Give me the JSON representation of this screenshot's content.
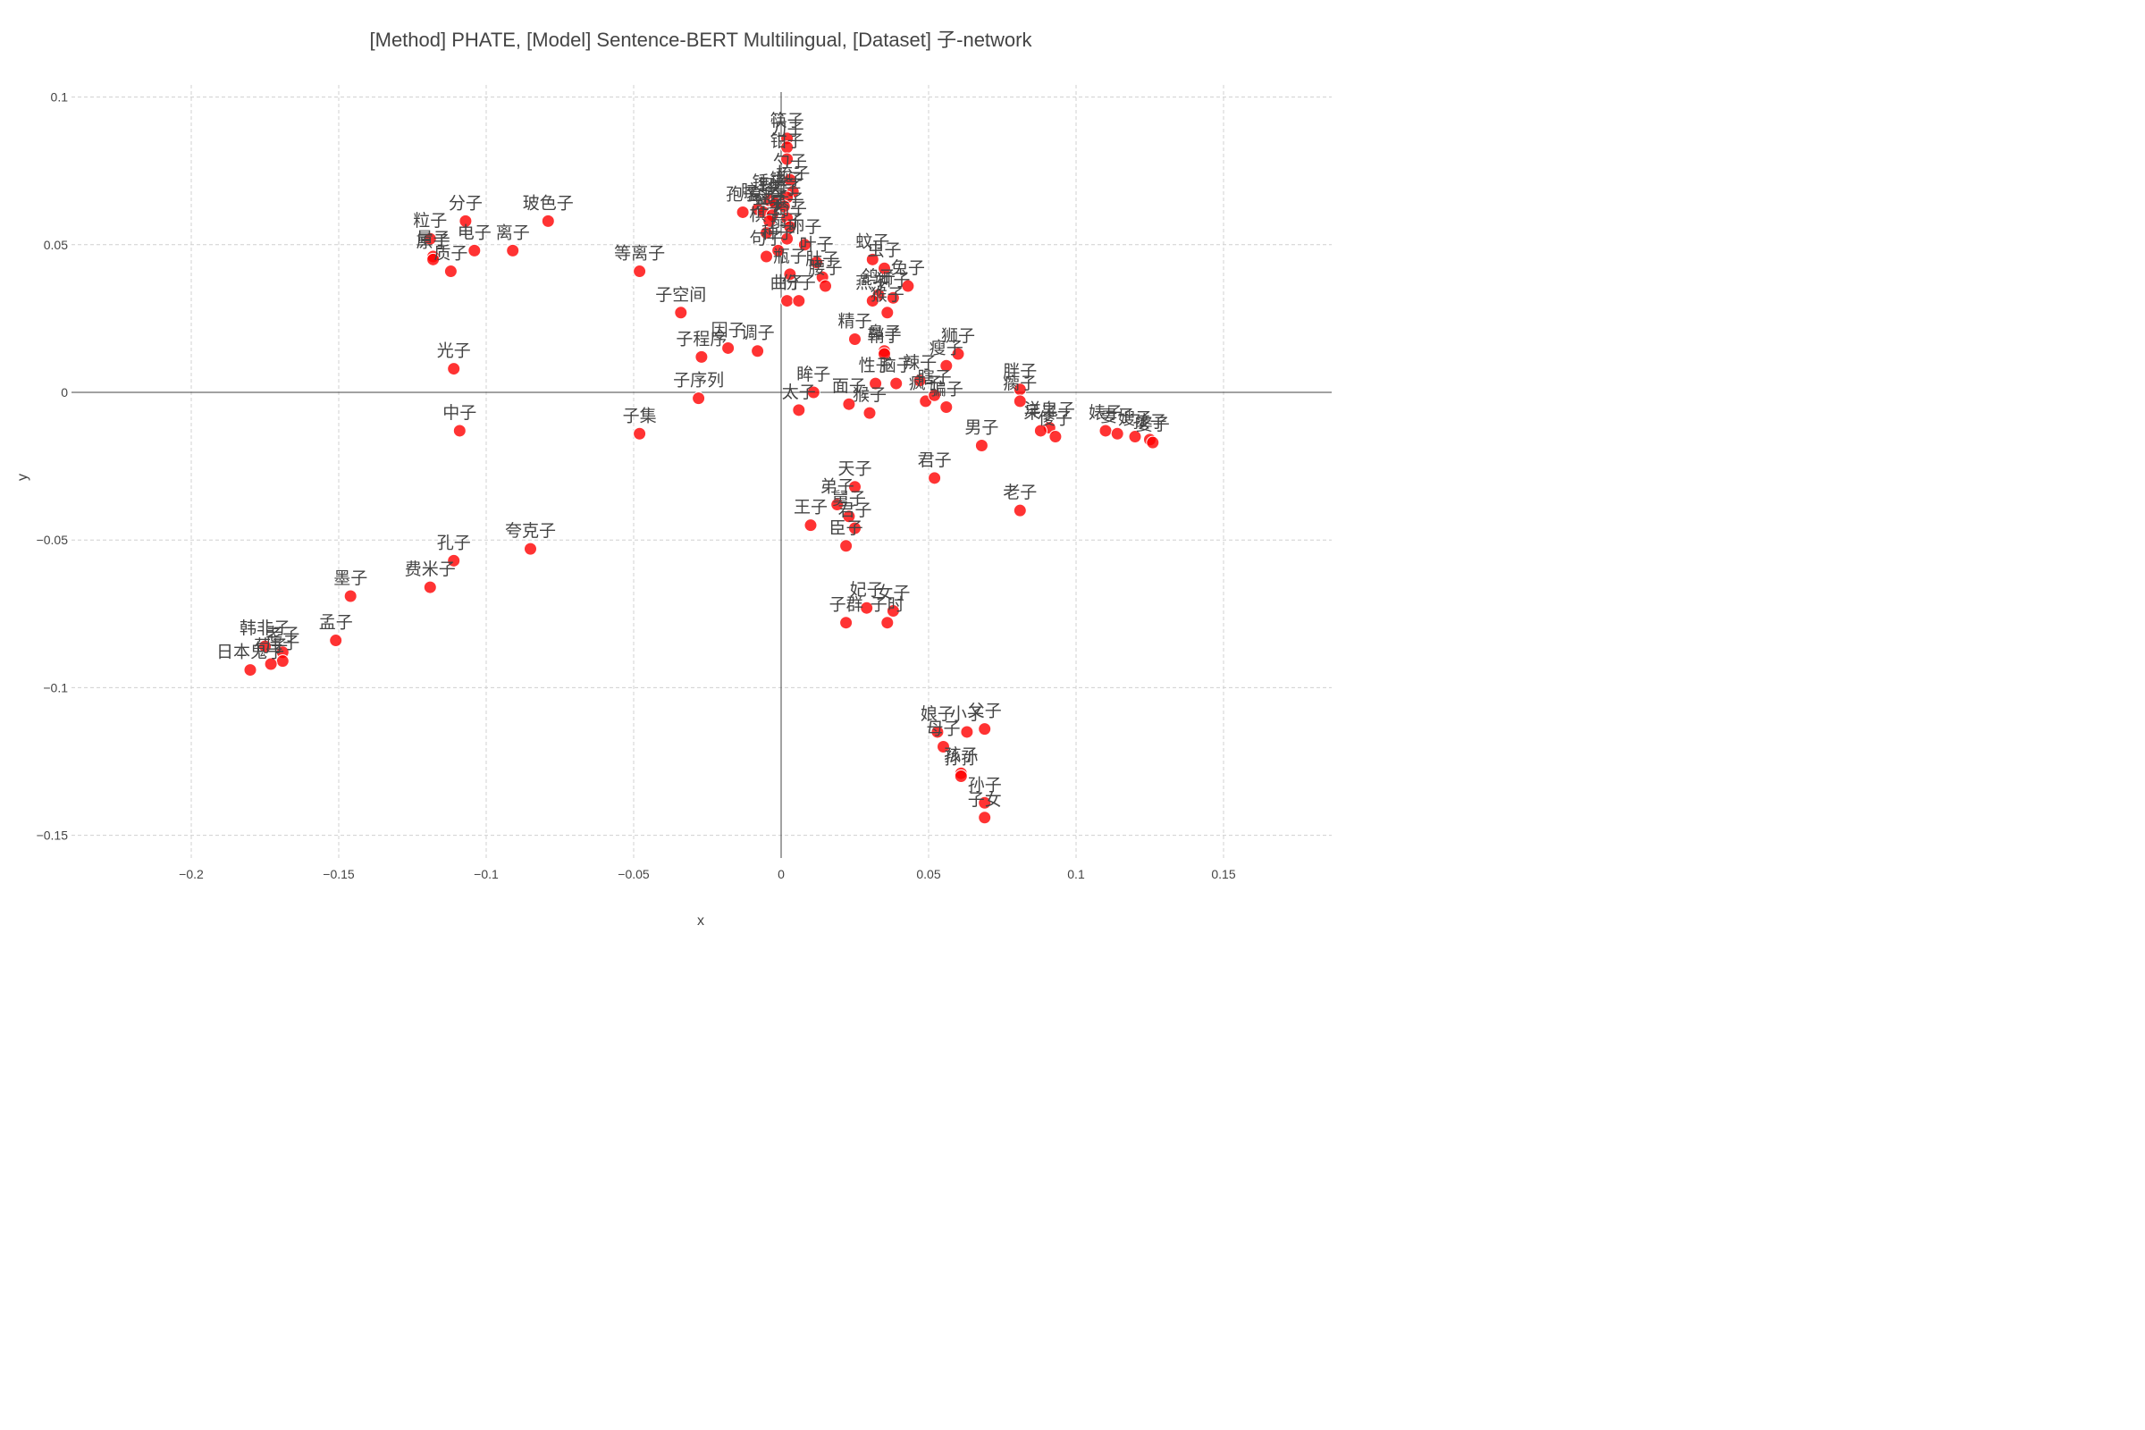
{
  "chart_data": {
    "type": "scatter",
    "title": "[Method] PHATE, [Model] Sentence-BERT Multilingual, [Dataset] 子-network",
    "xlabel": "x",
    "ylabel": "y",
    "xlim": [
      -0.2,
      0.15
    ],
    "ylim": [
      -0.15,
      0.1
    ],
    "xticks": [
      -0.2,
      -0.15,
      -0.1,
      -0.05,
      0,
      0.05,
      0.1,
      0.15
    ],
    "xtick_labels": [
      "−0.2",
      "−0.15",
      "−0.1",
      "−0.05",
      "0",
      "0.05",
      "0.1",
      "0.15"
    ],
    "yticks": [
      0.1,
      0.05,
      0,
      -0.05,
      -0.1,
      -0.15
    ],
    "ytick_labels": [
      "0.1",
      "0.05",
      "0",
      "−0.05",
      "−0.1",
      "−0.15"
    ],
    "grid": true,
    "legend": "none",
    "marker_color": "#ff0000",
    "points": [
      {
        "label": "分子",
        "x": -0.107,
        "y": 0.058
      },
      {
        "label": "玻色子",
        "x": -0.079,
        "y": 0.058
      },
      {
        "label": "粒子",
        "x": -0.119,
        "y": 0.052
      },
      {
        "label": "电子",
        "x": -0.104,
        "y": 0.048
      },
      {
        "label": "离子",
        "x": -0.091,
        "y": 0.048
      },
      {
        "label": "量子",
        "x": -0.118,
        "y": 0.046
      },
      {
        "label": "原子",
        "x": -0.118,
        "y": 0.045
      },
      {
        "label": "质子",
        "x": -0.112,
        "y": 0.041
      },
      {
        "label": "等离子",
        "x": -0.048,
        "y": 0.041
      },
      {
        "label": "子空间",
        "x": -0.034,
        "y": 0.027
      },
      {
        "label": "光子",
        "x": -0.111,
        "y": 0.008
      },
      {
        "label": "因子",
        "x": -0.018,
        "y": 0.015
      },
      {
        "label": "调子",
        "x": -0.008,
        "y": 0.014
      },
      {
        "label": "子程序",
        "x": -0.027,
        "y": 0.012
      },
      {
        "label": "子序列",
        "x": -0.028,
        "y": -0.002
      },
      {
        "label": "中子",
        "x": -0.109,
        "y": -0.013
      },
      {
        "label": "子集",
        "x": -0.048,
        "y": -0.014
      },
      {
        "label": "孔子",
        "x": -0.111,
        "y": -0.057
      },
      {
        "label": "夸克子",
        "x": -0.085,
        "y": -0.053
      },
      {
        "label": "费米子",
        "x": -0.119,
        "y": -0.066
      },
      {
        "label": "墨子",
        "x": -0.146,
        "y": -0.069
      },
      {
        "label": "孟子",
        "x": -0.151,
        "y": -0.084
      },
      {
        "label": "韩非子",
        "x": -0.175,
        "y": -0.086
      },
      {
        "label": "老子",
        "x": -0.169,
        "y": -0.088
      },
      {
        "label": "庄子",
        "x": -0.169,
        "y": -0.091
      },
      {
        "label": "荀子",
        "x": -0.173,
        "y": -0.092
      },
      {
        "label": "日本鬼子",
        "x": -0.18,
        "y": -0.094
      },
      {
        "label": "筷子",
        "x": 0.002,
        "y": 0.086
      },
      {
        "label": "刀子",
        "x": 0.002,
        "y": 0.083
      },
      {
        "label": "钳子",
        "x": 0.002,
        "y": 0.079
      },
      {
        "label": "勺子",
        "x": 0.003,
        "y": 0.072
      },
      {
        "label": "梳子",
        "x": 0.004,
        "y": 0.068
      },
      {
        "label": "镊子",
        "x": 0.002,
        "y": 0.066
      },
      {
        "label": "锤子",
        "x": -0.004,
        "y": 0.065
      },
      {
        "label": "钉子",
        "x": -0.002,
        "y": 0.064
      },
      {
        "label": "夹子",
        "x": 0.001,
        "y": 0.063
      },
      {
        "label": "胶子",
        "x": -0.008,
        "y": 0.062
      },
      {
        "label": "盒子",
        "x": -0.006,
        "y": 0.061
      },
      {
        "label": "孢子",
        "x": -0.013,
        "y": 0.061
      },
      {
        "label": "盘子",
        "x": -0.003,
        "y": 0.06
      },
      {
        "label": "桌子",
        "x": 0.002,
        "y": 0.059
      },
      {
        "label": "凳子",
        "x": -0.004,
        "y": 0.058
      },
      {
        "label": "椅子",
        "x": 0.003,
        "y": 0.056
      },
      {
        "label": "棋子",
        "x": -0.005,
        "y": 0.054
      },
      {
        "label": "扇子",
        "x": 0.002,
        "y": 0.052
      },
      {
        "label": "卵子",
        "x": 0.008,
        "y": 0.05
      },
      {
        "label": "种子",
        "x": -0.001,
        "y": 0.048
      },
      {
        "label": "句子",
        "x": -0.005,
        "y": 0.046
      },
      {
        "label": "叶子",
        "x": 0.012,
        "y": 0.044
      },
      {
        "label": "瓶子",
        "x": 0.003,
        "y": 0.04
      },
      {
        "label": "肚子",
        "x": 0.014,
        "y": 0.039
      },
      {
        "label": "腰子",
        "x": 0.015,
        "y": 0.036
      },
      {
        "label": "曲子",
        "x": 0.002,
        "y": 0.031
      },
      {
        "label": "份子",
        "x": 0.006,
        "y": 0.031
      },
      {
        "label": "蚊子",
        "x": 0.031,
        "y": 0.045
      },
      {
        "label": "虫子",
        "x": 0.035,
        "y": 0.042
      },
      {
        "label": "兔子",
        "x": 0.043,
        "y": 0.036
      },
      {
        "label": "鸽子",
        "x": 0.033,
        "y": 0.033
      },
      {
        "label": "燕子",
        "x": 0.031,
        "y": 0.031
      },
      {
        "label": "狮子",
        "x": 0.038,
        "y": 0.032
      },
      {
        "label": "猴子",
        "x": 0.036,
        "y": 0.027
      },
      {
        "label": "精子",
        "x": 0.025,
        "y": 0.018
      },
      {
        "label": "鼻子",
        "x": 0.035,
        "y": 0.014
      },
      {
        "label": "鞘子",
        "x": 0.035,
        "y": 0.013
      },
      {
        "label": "狮子",
        "x": 0.06,
        "y": 0.013
      },
      {
        "label": "瘦子",
        "x": 0.056,
        "y": 0.009
      },
      {
        "label": "性子",
        "x": 0.032,
        "y": 0.003
      },
      {
        "label": "脑子",
        "x": 0.039,
        "y": 0.003
      },
      {
        "label": "辣子",
        "x": 0.047,
        "y": 0.004
      },
      {
        "label": "疯子",
        "x": 0.049,
        "y": -0.003
      },
      {
        "label": "瞎子",
        "x": 0.052,
        "y": -0.001
      },
      {
        "label": "骗子",
        "x": 0.056,
        "y": -0.005
      },
      {
        "label": "眸子",
        "x": 0.011,
        "y": 0.0
      },
      {
        "label": "太子",
        "x": 0.006,
        "y": -0.006
      },
      {
        "label": "面子",
        "x": 0.023,
        "y": -0.004
      },
      {
        "label": "猴子",
        "x": 0.03,
        "y": -0.007
      },
      {
        "label": "胖子",
        "x": 0.081,
        "y": 0.001
      },
      {
        "label": "瘸子",
        "x": 0.081,
        "y": -0.003
      },
      {
        "label": "洋鬼子",
        "x": 0.091,
        "y": -0.012
      },
      {
        "label": "呆子",
        "x": 0.088,
        "y": -0.013
      },
      {
        "label": "傻子",
        "x": 0.093,
        "y": -0.015
      },
      {
        "label": "婊子",
        "x": 0.11,
        "y": -0.013
      },
      {
        "label": "妻子",
        "x": 0.114,
        "y": -0.014
      },
      {
        "label": "嫂子",
        "x": 0.12,
        "y": -0.015
      },
      {
        "label": "孩子",
        "x": 0.125,
        "y": -0.016
      },
      {
        "label": "婆子",
        "x": 0.126,
        "y": -0.017
      },
      {
        "label": "男子",
        "x": 0.068,
        "y": -0.018
      },
      {
        "label": "君子",
        "x": 0.052,
        "y": -0.029
      },
      {
        "label": "老子",
        "x": 0.081,
        "y": -0.04
      },
      {
        "label": "天子",
        "x": 0.025,
        "y": -0.032
      },
      {
        "label": "弟子",
        "x": 0.019,
        "y": -0.038
      },
      {
        "label": "舅子",
        "x": 0.023,
        "y": -0.042
      },
      {
        "label": "君子",
        "x": 0.025,
        "y": -0.046
      },
      {
        "label": "王子",
        "x": 0.01,
        "y": -0.045
      },
      {
        "label": "臣子",
        "x": 0.022,
        "y": -0.052
      },
      {
        "label": "妃子",
        "x": 0.029,
        "y": -0.073
      },
      {
        "label": "女子",
        "x": 0.038,
        "y": -0.074
      },
      {
        "label": "子群",
        "x": 0.022,
        "y": -0.078
      },
      {
        "label": "子时",
        "x": 0.036,
        "y": -0.078
      },
      {
        "label": "娘子",
        "x": 0.053,
        "y": -0.115
      },
      {
        "label": "小子",
        "x": 0.063,
        "y": -0.115
      },
      {
        "label": "父子",
        "x": 0.069,
        "y": -0.114
      },
      {
        "label": "母子",
        "x": 0.055,
        "y": -0.12
      },
      {
        "label": "孩子",
        "x": 0.061,
        "y": -0.129
      },
      {
        "label": "孙孙",
        "x": 0.061,
        "y": -0.13
      },
      {
        "label": "孙子",
        "x": 0.069,
        "y": -0.139
      },
      {
        "label": "子女",
        "x": 0.069,
        "y": -0.144
      }
    ]
  }
}
